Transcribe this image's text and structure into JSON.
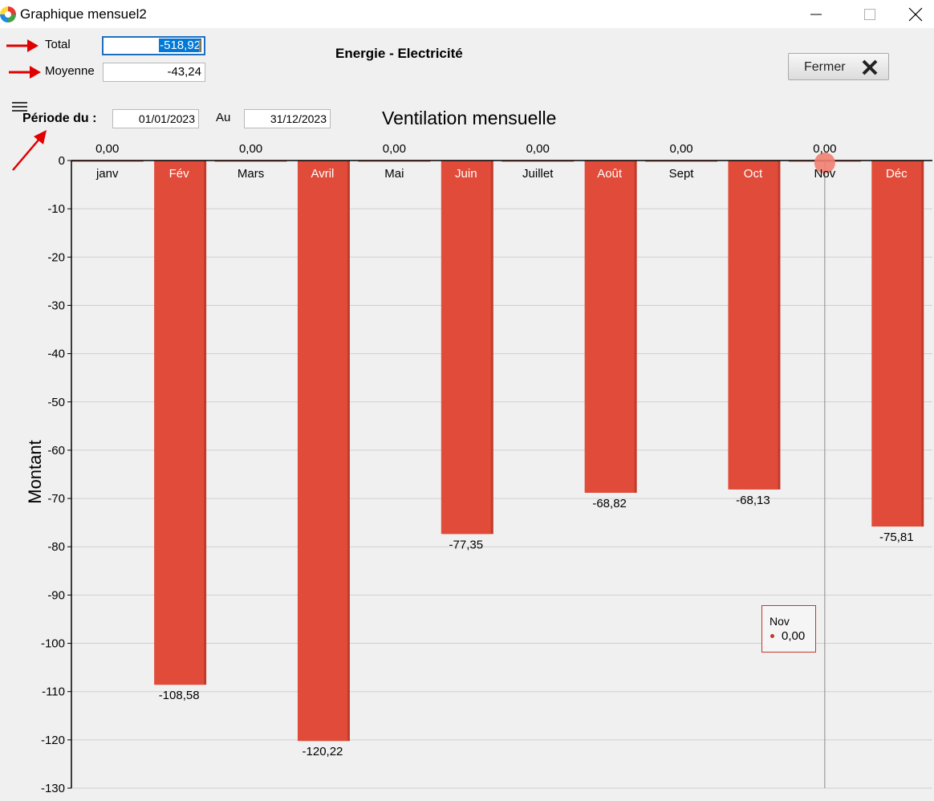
{
  "window": {
    "title": "Graphique mensuel2"
  },
  "summary": {
    "total_label": "Total",
    "total_value": "-518,92",
    "moyenne_label": "Moyenne",
    "moyenne_value": "-43,24"
  },
  "report_title": "Energie - Electricité",
  "close_button": {
    "label": "Fermer"
  },
  "period": {
    "label": "Période du :",
    "from": "01/01/2023",
    "to_label": "Au",
    "to": "31/12/2023"
  },
  "colors": {
    "bar": "#e14c3a",
    "bar_edge": "#c23a2a",
    "marker": "#f08070",
    "tooltip_border": "#c0392b"
  },
  "tooltip": {
    "title": "Nov",
    "value": "0,00"
  },
  "chart_data": {
    "type": "bar",
    "title": "Ventilation mensuelle",
    "ylabel": "Montant",
    "xlabel": "",
    "ylim": [
      -130,
      0
    ],
    "yticks": [
      0,
      -10,
      -20,
      -30,
      -40,
      -50,
      -60,
      -70,
      -80,
      -90,
      -100,
      -110,
      -120,
      -130
    ],
    "grid": true,
    "categories": [
      "janv",
      "Fév",
      "Mars",
      "Avril",
      "Mai",
      "Juin",
      "Juillet",
      "Août",
      "Sept",
      "Oct",
      "Nov",
      "Déc"
    ],
    "values": [
      0,
      -108.58,
      0,
      -120.22,
      0,
      -77.35,
      0,
      -68.82,
      0,
      -68.13,
      0,
      -75.81
    ],
    "value_labels": [
      "0,00",
      "-108,58",
      "0,00",
      "-120,22",
      "0,00",
      "-77,35",
      "0,00",
      "-68,82",
      "0,00",
      "-68,13",
      "0,00",
      "-75,81"
    ],
    "highlighted_category": "Nov"
  }
}
